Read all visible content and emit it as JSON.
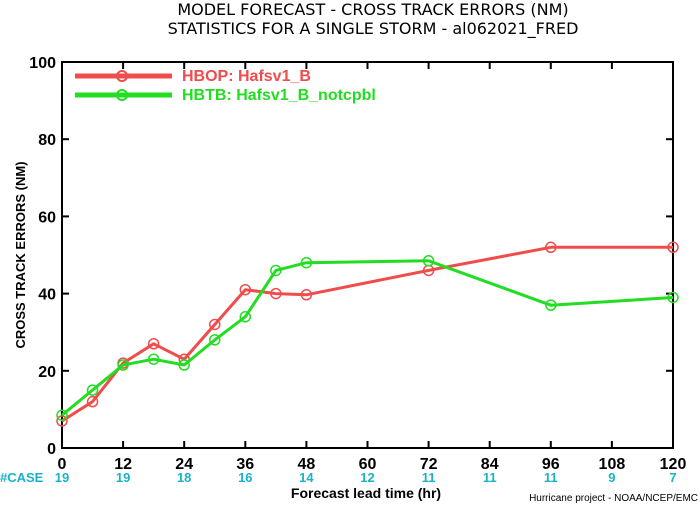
{
  "chart_data": {
    "type": "line",
    "title": "MODEL FORECAST - CROSS TRACK ERRORS (NM)",
    "subtitle": "STATISTICS FOR A SINGLE STORM - al062021_FRED",
    "xlabel": "Forecast lead time (hr)",
    "ylabel": "CROSS TRACK ERRORS (NM)",
    "xlim": [
      0,
      120
    ],
    "ylim": [
      0,
      100
    ],
    "xticks": [
      0,
      12,
      24,
      36,
      48,
      60,
      72,
      84,
      96,
      108,
      120
    ],
    "yticks": [
      0,
      20,
      40,
      60,
      80,
      100
    ],
    "grid": false,
    "legend_position": "top-left",
    "series": [
      {
        "name": "HBOP: Hafsv1_B",
        "color": "#f04c4c",
        "x": [
          0,
          6,
          12,
          18,
          24,
          30,
          36,
          42,
          48,
          72,
          96,
          120
        ],
        "y": [
          7,
          12,
          22,
          27,
          23,
          32,
          41,
          40,
          39.7,
          46,
          52,
          52
        ]
      },
      {
        "name": "HBTB: Hafsv1_B_notcpbl",
        "color": "#22dd22",
        "x": [
          0,
          6,
          12,
          18,
          24,
          30,
          36,
          42,
          48,
          72,
          96,
          120
        ],
        "y": [
          8.5,
          15,
          21.5,
          23,
          21.5,
          28,
          34,
          46,
          48,
          48.5,
          37,
          39
        ]
      }
    ],
    "case_counts": {
      "label": "#CASE",
      "x": [
        0,
        12,
        24,
        36,
        48,
        60,
        72,
        84,
        96,
        108,
        120
      ],
      "values": [
        "19",
        "19",
        "18",
        "16",
        "14",
        "12",
        "11",
        "11",
        "11",
        "9",
        "7"
      ]
    },
    "credit": "Hurricane project - NOAA/NCEP/EMC"
  }
}
